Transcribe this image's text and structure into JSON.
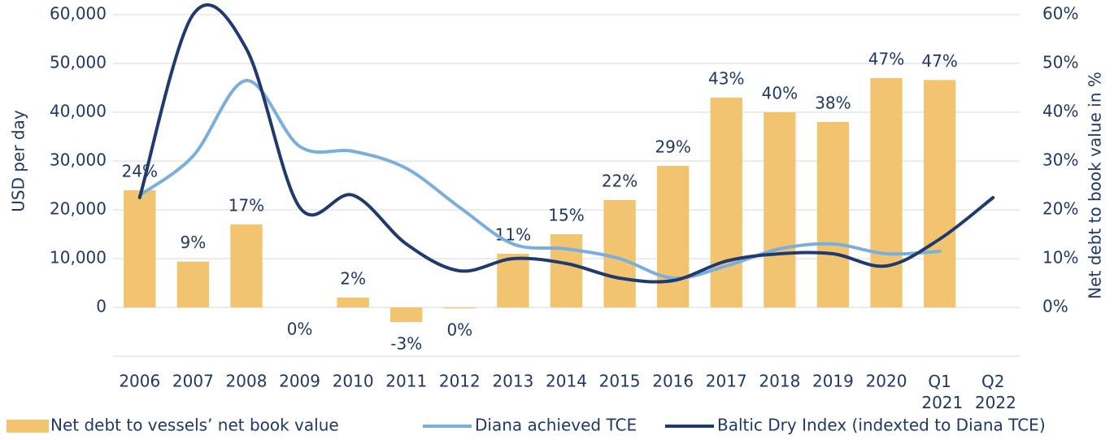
{
  "chart_data": {
    "type": "bar",
    "y_label": "USD per day",
    "y2_label": "Net debt to book value in %",
    "categories": [
      "2006",
      "2007",
      "2008",
      "2009",
      "2010",
      "2011",
      "2012",
      "2013",
      "2014",
      "2015",
      "2016",
      "2017",
      "2018",
      "2019",
      "2020",
      "Q1 2021",
      "Q2 2022"
    ],
    "series": [
      {
        "name": "Net debt to vessels’ net book value",
        "type": "bar",
        "axis": "y2",
        "color": "#f2c46f",
        "values": [
          24,
          9.4,
          17,
          0,
          2,
          -3,
          -0.2,
          11,
          15,
          22,
          29,
          43,
          40,
          38,
          47,
          46.6,
          null
        ],
        "value_labels": [
          "24%",
          "9%",
          "17%",
          "0%",
          "2%",
          "-3%",
          "0%",
          "11%",
          "15%",
          "22%",
          "29%",
          "43%",
          "40%",
          "38%",
          "47%",
          "47%",
          null
        ]
      },
      {
        "name": "Diana achieved TCE",
        "type": "line",
        "color": "#7aaedc",
        "values": [
          23000,
          31000,
          46500,
          33000,
          32000,
          28500,
          20500,
          13000,
          12000,
          10000,
          6000,
          8500,
          12000,
          13000,
          11000,
          11500,
          null
        ]
      },
      {
        "name": "Baltic Dry Index (indexted to Diana TCE)",
        "type": "line",
        "color": "#1f3a6e",
        "values": [
          22500,
          60000,
          53000,
          20500,
          23000,
          13000,
          7500,
          10000,
          9000,
          6000,
          5500,
          9500,
          11000,
          11000,
          8500,
          14000,
          22500
        ]
      }
    ],
    "ylim": [
      -10000,
      60000
    ],
    "yticks": [
      0,
      {
        "value": 10000,
        "label": "10,000"
      },
      {
        "value": 20000,
        "label": "20,000"
      },
      {
        "value": 30000,
        "label": "30,000"
      },
      {
        "value": 40000,
        "label": "40,000"
      },
      {
        "value": 50000,
        "label": "50,000"
      },
      {
        "value": 60000,
        "label": "60,000"
      }
    ],
    "y2lim": [
      -10,
      60
    ],
    "y2ticks": [
      {
        "value": 0,
        "label": "0%"
      },
      {
        "value": 10,
        "label": "10%"
      },
      {
        "value": 20,
        "label": "20%"
      },
      {
        "value": 30,
        "label": "30%"
      },
      {
        "value": 40,
        "label": "40%"
      },
      {
        "value": 50,
        "label": "50%"
      },
      {
        "value": 60,
        "label": "60%"
      }
    ],
    "grid": true,
    "legend": "bottom"
  }
}
